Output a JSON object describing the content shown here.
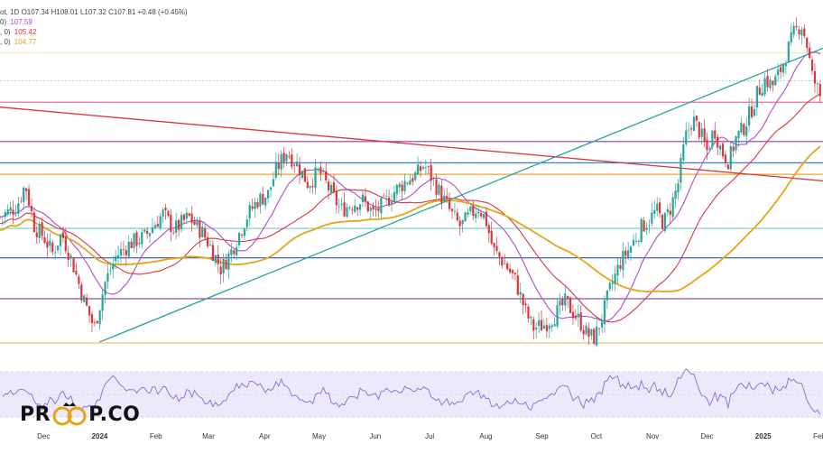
{
  "legend": {
    "ohlc_text": "ot, 1D O107.34 H108.01 L107.32 C107.81 +0.48 (+0.45%)",
    "ma_rows": [
      {
        "label": "0)",
        "value": "107.59",
        "color": "#b04cc9"
      },
      {
        "label": ", 0)",
        "value": "105.42",
        "color": "#d9363e"
      },
      {
        "label": ", 0)",
        "value": "104.77",
        "color": "#e8a317"
      }
    ]
  },
  "logo": {
    "left_text": "PR",
    "right_text": "P.CO"
  },
  "colors": {
    "bull": "#26a69a",
    "bear": "#d9363e",
    "ma_purple": "#b04cc9",
    "ma_red": "#d9363e",
    "ma_orange": "#e8a317",
    "trend_teal": "#26a69a",
    "trend_red": "#d9363e",
    "rsi": "#7e6fd6",
    "rsi_band": "#ede9fb"
  },
  "chart_data": {
    "type": "candlestick",
    "x_labels": [
      {
        "label": "Dec",
        "day": 0
      },
      {
        "label": "2024",
        "day": 31
      },
      {
        "label": "Feb",
        "day": 62
      },
      {
        "label": "Mar",
        "day": 91
      },
      {
        "label": "Apr",
        "day": 122
      },
      {
        "label": "May",
        "day": 152
      },
      {
        "label": "Jun",
        "day": 183
      },
      {
        "label": "Jul",
        "day": 213
      },
      {
        "label": "Aug",
        "day": 244
      },
      {
        "label": "Sep",
        "day": 275
      },
      {
        "label": "Oct",
        "day": 305
      },
      {
        "label": "Nov",
        "day": 336
      },
      {
        "label": "Dec",
        "day": 366
      },
      {
        "label": "2025",
        "day": 397
      },
      {
        "label": "Feb",
        "day": 428
      }
    ],
    "x_range": [
      -24,
      430
    ],
    "y_range": [
      99.8,
      110.6
    ],
    "anchors": [
      [
        -24,
        104.2
      ],
      [
        -15,
        104.5
      ],
      [
        -10,
        105.2
      ],
      [
        -5,
        103.9
      ],
      [
        0,
        103.6
      ],
      [
        5,
        103.1
      ],
      [
        10,
        103.7
      ],
      [
        16,
        102.8
      ],
      [
        22,
        101.7
      ],
      [
        28,
        100.8
      ],
      [
        34,
        102.2
      ],
      [
        40,
        103.0
      ],
      [
        48,
        103.4
      ],
      [
        56,
        103.6
      ],
      [
        60,
        103.9
      ],
      [
        66,
        104.3
      ],
      [
        72,
        103.8
      ],
      [
        80,
        104.2
      ],
      [
        88,
        103.7
      ],
      [
        92,
        103.3
      ],
      [
        98,
        102.6
      ],
      [
        104,
        103.2
      ],
      [
        112,
        104.2
      ],
      [
        118,
        104.7
      ],
      [
        124,
        104.9
      ],
      [
        128,
        105.6
      ],
      [
        134,
        106.2
      ],
      [
        140,
        105.8
      ],
      [
        146,
        105.2
      ],
      [
        152,
        105.6
      ],
      [
        158,
        105.0
      ],
      [
        164,
        104.4
      ],
      [
        170,
        104.6
      ],
      [
        176,
        104.7
      ],
      [
        182,
        104.3
      ],
      [
        188,
        104.6
      ],
      [
        194,
        105.0
      ],
      [
        200,
        105.3
      ],
      [
        206,
        105.5
      ],
      [
        210,
        105.8
      ],
      [
        216,
        105.2
      ],
      [
        222,
        104.6
      ],
      [
        226,
        104.2
      ],
      [
        230,
        103.9
      ],
      [
        236,
        104.3
      ],
      [
        240,
        104.5
      ],
      [
        244,
        104.1
      ],
      [
        248,
        103.2
      ],
      [
        254,
        102.8
      ],
      [
        260,
        102.3
      ],
      [
        266,
        101.3
      ],
      [
        270,
        100.8
      ],
      [
        276,
        100.9
      ],
      [
        282,
        101.2
      ],
      [
        288,
        101.6
      ],
      [
        292,
        101.3
      ],
      [
        296,
        101.0
      ],
      [
        300,
        100.6
      ],
      [
        304,
        100.5
      ],
      [
        308,
        101.1
      ],
      [
        312,
        101.9
      ],
      [
        318,
        102.8
      ],
      [
        324,
        103.3
      ],
      [
        330,
        103.9
      ],
      [
        334,
        104.1
      ],
      [
        338,
        104.4
      ],
      [
        342,
        104.0
      ],
      [
        346,
        104.5
      ],
      [
        350,
        105.2
      ],
      [
        354,
        106.6
      ],
      [
        358,
        107.2
      ],
      [
        362,
        106.8
      ],
      [
        366,
        106.2
      ],
      [
        370,
        106.9
      ],
      [
        374,
        106.2
      ],
      [
        378,
        105.9
      ],
      [
        382,
        106.6
      ],
      [
        386,
        106.9
      ],
      [
        390,
        107.4
      ],
      [
        394,
        108.0
      ],
      [
        398,
        108.4
      ],
      [
        402,
        108.2
      ],
      [
        406,
        108.6
      ],
      [
        410,
        109.2
      ],
      [
        414,
        109.8
      ],
      [
        418,
        110.1
      ],
      [
        421,
        109.5
      ],
      [
        424,
        108.5
      ],
      [
        427,
        108.1
      ],
      [
        429,
        107.8
      ]
    ],
    "horizontal_levels": [
      {
        "price": 109.2,
        "color": "#e8d37a",
        "width": 0.7
      },
      {
        "price": 108.35,
        "color": "#6fc6b8",
        "width": 0.6,
        "dash": true
      },
      {
        "price": 107.7,
        "color": "#f06fa0",
        "width": 1.2
      },
      {
        "price": 106.5,
        "color": "#8e3aa8",
        "width": 1.1
      },
      {
        "price": 105.85,
        "color": "#3d7fd6",
        "width": 1.2
      },
      {
        "price": 105.5,
        "color": "#f0a02a",
        "width": 1.2
      },
      {
        "price": 103.85,
        "color": "#5ec9c0",
        "width": 0.9
      },
      {
        "price": 102.95,
        "color": "#2f54b8",
        "width": 1.1
      },
      {
        "price": 101.7,
        "color": "#6b2a8a",
        "width": 1.0
      },
      {
        "price": 100.35,
        "color": "#e8b646",
        "width": 1.0
      }
    ],
    "trendlines": [
      {
        "from": [
          31,
          100.38
        ],
        "to": [
          430,
          109.35
        ],
        "color": "#26a69a",
        "width": 1.3
      },
      {
        "from": [
          -24,
          107.55
        ],
        "to": [
          430,
          105.3
        ],
        "color": "#d9363e",
        "width": 1.3
      }
    ],
    "moving_averages": [
      {
        "name": "ma_purple",
        "color": "#b04cc9",
        "period": 5
      },
      {
        "name": "ma_red",
        "color": "#d9363e",
        "period": 12
      },
      {
        "name": "ma_orange",
        "color": "#e8a317",
        "period": 24
      }
    ],
    "rsi": {
      "band_high": 70,
      "band_low": 30,
      "mid": 50
    }
  }
}
